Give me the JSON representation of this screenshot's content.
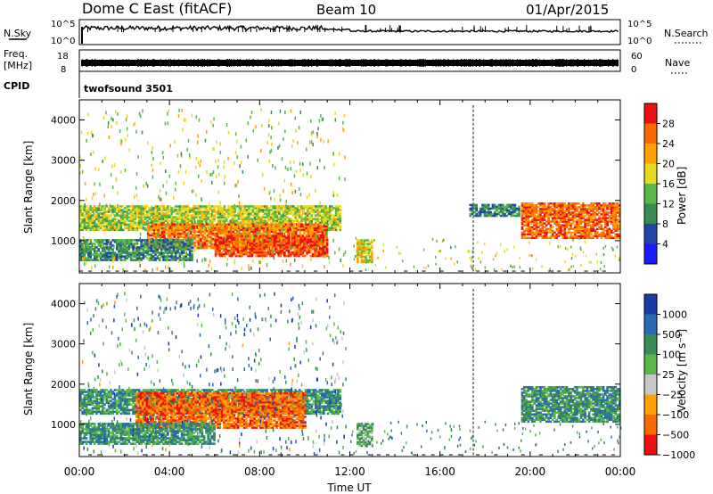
{
  "header": {
    "station": "Dome C East (fitACF)",
    "beam": "Beam 10",
    "date": "01/Apr/2015"
  },
  "nsky_panel": {
    "left_label": "N.Sky",
    "left_ticks": [
      "10^5",
      "10^0"
    ],
    "right_ticks": [
      "10^5",
      "10^0"
    ],
    "right_label": "N.Search"
  },
  "freq_panel": {
    "left_label_line1": "Freq.",
    "left_label_line2": "[MHz]",
    "left_ticks": [
      "18",
      "8"
    ],
    "right_ticks": [
      "60",
      "0"
    ],
    "right_label": "Nave"
  },
  "cpid_panel": {
    "label": "CPID",
    "value": "twofsound 3501"
  },
  "colors": {
    "power_scale": [
      "#1a1aff",
      "#2244aa",
      "#3a8a55",
      "#58b848",
      "#e8d820",
      "#ffa000",
      "#ff6a00",
      "#ee1010"
    ],
    "velocity_scale": [
      "#ee1010",
      "#ff6a00",
      "#ffa000",
      "#c8c8c8",
      "#58b848",
      "#3a8a55",
      "#2a6ab0",
      "#1a3aaa"
    ]
  },
  "chart_data": [
    {
      "type": "heatmap",
      "panel": "power",
      "ylabel": "Slant Range [km]",
      "y_ticks": [
        "1000",
        "2000",
        "3000",
        "4000"
      ],
      "ylim": [
        200,
        4500
      ],
      "xlim": [
        0,
        24
      ],
      "colorbar_label": "Power [dB]",
      "colorbar_ticks": [
        "4",
        "8",
        "12",
        "16",
        "20",
        "24",
        "28"
      ],
      "colorbar_range": [
        0,
        32
      ],
      "regions": [
        {
          "t0": 0.0,
          "t1": 11.6,
          "r0": 1250,
          "r1": 1850,
          "level": 16
        },
        {
          "t0": 3.0,
          "t1": 11.0,
          "r0": 800,
          "r1": 1400,
          "level": 25
        },
        {
          "t0": 6.0,
          "t1": 11.0,
          "r0": 600,
          "r1": 1100,
          "level": 28
        },
        {
          "t0": 0.0,
          "t1": 5.0,
          "r0": 500,
          "r1": 1000,
          "level": 10
        },
        {
          "t0": 12.3,
          "t1": 13.0,
          "r0": 450,
          "r1": 1000,
          "level": 18
        },
        {
          "t0": 19.6,
          "t1": 24.0,
          "r0": 1050,
          "r1": 1950,
          "level": 26
        },
        {
          "t0": 17.3,
          "t1": 19.5,
          "r0": 1600,
          "r1": 1900,
          "level": 9
        }
      ]
    },
    {
      "type": "heatmap",
      "panel": "velocity",
      "ylabel": "Slant Range [km]",
      "y_ticks": [
        "1000",
        "2000",
        "3000",
        "4000"
      ],
      "ylim": [
        200,
        4500
      ],
      "xlim": [
        0,
        24
      ],
      "xlabel": "Time UT",
      "x_ticks": [
        "00:00",
        "04:00",
        "08:00",
        "12:00",
        "16:00",
        "20:00",
        "00:00"
      ],
      "colorbar_label": "Velocity [m s⁻¹]",
      "colorbar_ticks": [
        "1000",
        "500",
        "100",
        "25",
        "−25",
        "−100",
        "−500",
        "−1000"
      ],
      "regions": [
        {
          "t0": 0.0,
          "t1": 11.6,
          "r0": 1250,
          "r1": 1850,
          "level": 5
        },
        {
          "t0": 2.5,
          "t1": 10.0,
          "r0": 900,
          "r1": 1800,
          "level": 1
        },
        {
          "t0": 0.0,
          "t1": 6.0,
          "r0": 500,
          "r1": 1000,
          "level": 5
        },
        {
          "t0": 12.3,
          "t1": 13.0,
          "r0": 450,
          "r1": 1000,
          "level": 4
        },
        {
          "t0": 19.6,
          "t1": 24.0,
          "r0": 1050,
          "r1": 1950,
          "level": 5
        }
      ]
    }
  ]
}
